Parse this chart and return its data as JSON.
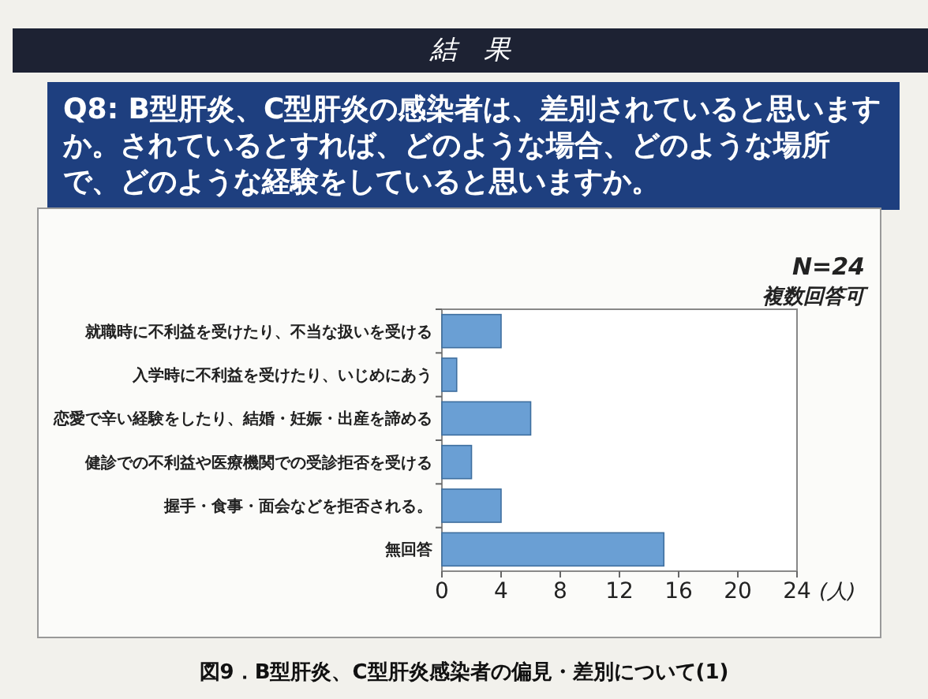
{
  "chart_data": {
    "type": "bar",
    "orientation": "horizontal",
    "title": "結　果",
    "subtitle": "Q8: B型肝炎、C型肝炎の感染者は、差別されていると思いますか。されているとすれば、どのような場合、どのような場所で、どのような経験をしていると思いますか。",
    "categories": [
      "就職時に不利益を受けたり、不当な扱いを受ける",
      "入学時に不利益を受けたり、いじめにあう",
      "恋愛で辛い経験をしたり、結婚・妊娠・出産を諦める",
      "健診での不利益や医療機関での受診拒否を受ける",
      "握手・食事・面会などを拒否される。",
      "無回答"
    ],
    "values": [
      4,
      1,
      6,
      2,
      4,
      15
    ],
    "color": "#6a9fd4",
    "xlim": [
      0,
      24
    ],
    "xticks": [
      0,
      4,
      8,
      12,
      16,
      20,
      24
    ],
    "xlabel": "(人)",
    "annotations": [
      "N=24",
      "複数回答可",
      "図9．B型肝炎、C型肝炎感染者の偏見・差別について(1)"
    ]
  }
}
